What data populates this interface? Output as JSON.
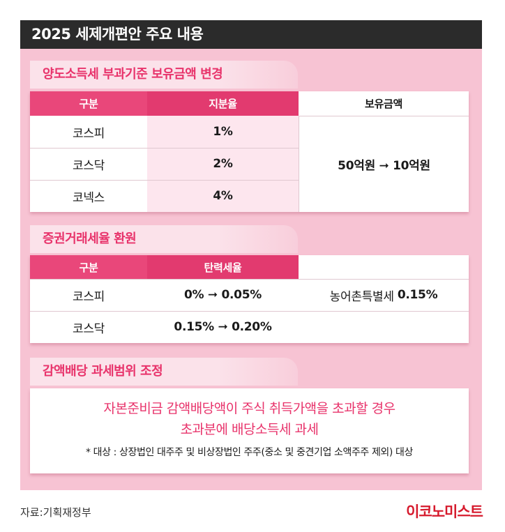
{
  "title": "2025 세제개편안 주요 내용",
  "section1": {
    "heading": "양도소득세 부과기준 보유금액 변경",
    "headers": [
      "구분",
      "지분율",
      "보유금액"
    ],
    "rows": [
      {
        "market": "코스피",
        "ratio": "1%"
      },
      {
        "market": "코스닥",
        "ratio": "2%"
      },
      {
        "market": "코넥스",
        "ratio": "4%"
      }
    ],
    "holding": "50억원 ➞ 10억원"
  },
  "section2": {
    "heading": "증권거래세율 환원",
    "headers": [
      "구분",
      "탄력세율",
      ""
    ],
    "rows": [
      {
        "market": "코스피",
        "rate": "0% ➞ 0.05%"
      },
      {
        "market": "코스닥",
        "rate": "0.15% ➞ 0.20%"
      }
    ],
    "extra_label": "농어촌특별세",
    "extra_value": "0.15%"
  },
  "section3": {
    "heading": "감액배당 과세범위 조정",
    "line1": "자본준비금 감액배당액이 주식 취득가액을 초과할 경우",
    "line2": "초과분에 배당소득세 과세",
    "note": "* 대상 : 상장법인 대주주 및 비상장법인 주주(중소 및 중견기업 소액주주 제외) 대상"
  },
  "footer": {
    "source": "자료:기획재정부",
    "brand": "이코노미스트"
  },
  "colors": {
    "panel_bg": "#f7c3d3",
    "accent": "#e8336b",
    "header_bg": "#e9477a",
    "title_bg": "#2b2b2b",
    "brand": "#d61a2d"
  }
}
